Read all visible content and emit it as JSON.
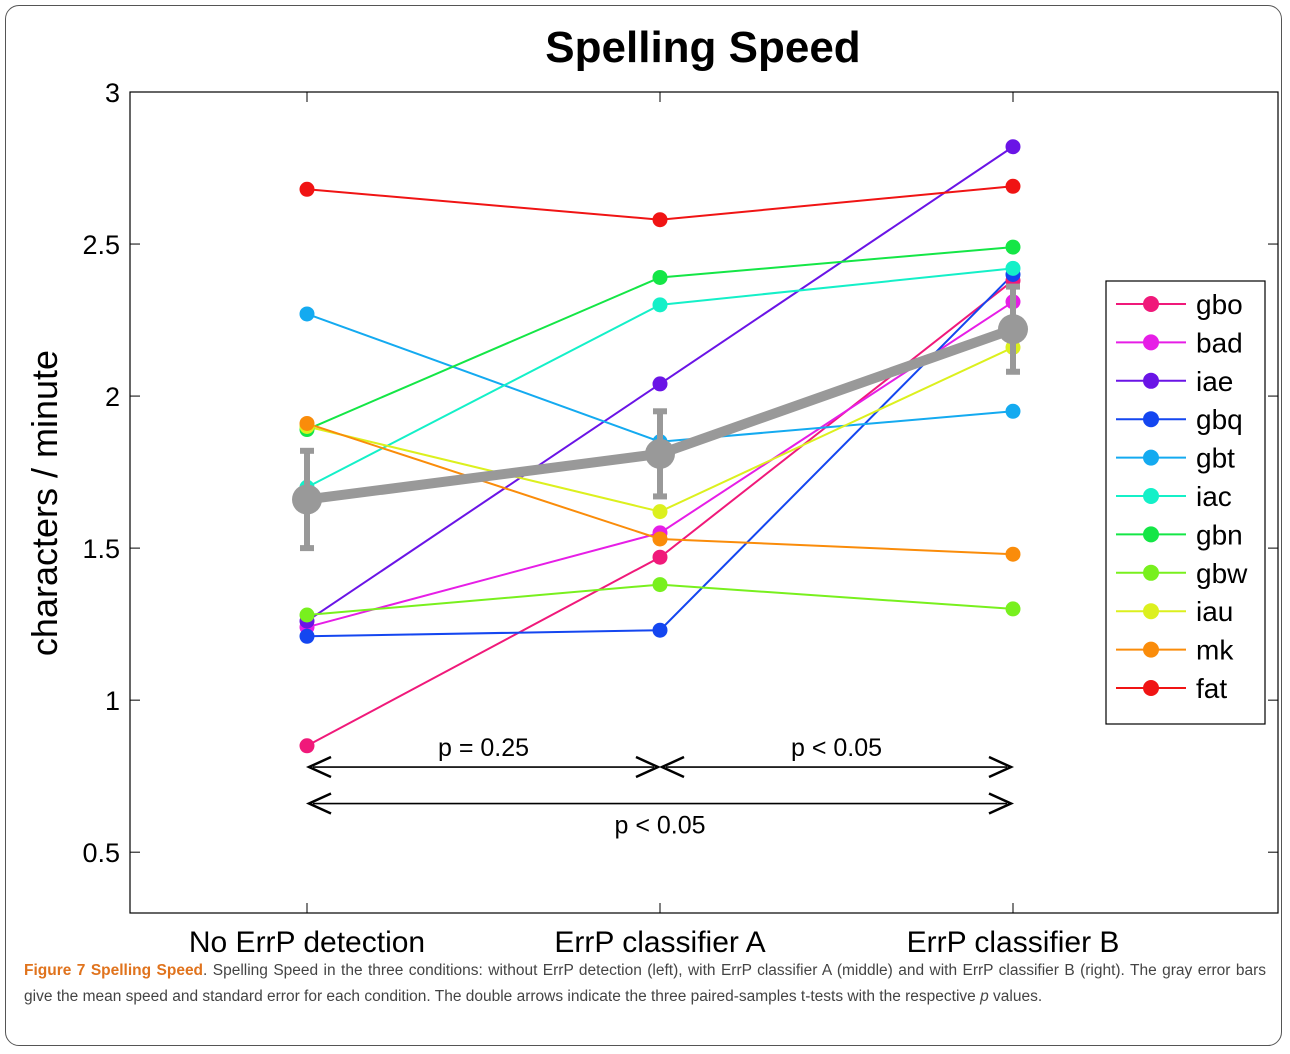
{
  "chart_data": {
    "type": "line",
    "title": "Spelling Speed",
    "ylabel": "characters / minute",
    "xlabel": "",
    "categories": [
      "No ErrP detection",
      "ErrP classifier A",
      "ErrP classifier B"
    ],
    "ylim": [
      0.3,
      3.0
    ],
    "yticks": [
      "0.5",
      "1",
      "1.5",
      "2",
      "2.5",
      "3"
    ],
    "legend_position": "right",
    "series": [
      {
        "name": "gbo",
        "color": "#f0197a",
        "values": [
          0.85,
          1.47,
          2.38
        ]
      },
      {
        "name": "bad",
        "color": "#e61ee6",
        "values": [
          1.24,
          1.55,
          2.31
        ]
      },
      {
        "name": "iae",
        "color": "#6a14e6",
        "values": [
          1.26,
          2.04,
          2.82
        ]
      },
      {
        "name": "gbq",
        "color": "#1446f0",
        "values": [
          1.21,
          1.23,
          2.4
        ]
      },
      {
        "name": "gbt",
        "color": "#14aaf0",
        "values": [
          2.27,
          1.85,
          1.95
        ]
      },
      {
        "name": "iac",
        "color": "#14f0c8",
        "values": [
          1.7,
          2.3,
          2.42
        ]
      },
      {
        "name": "gbn",
        "color": "#14e646",
        "values": [
          1.89,
          2.39,
          2.49
        ]
      },
      {
        "name": "gbw",
        "color": "#78f01e",
        "values": [
          1.28,
          1.38,
          1.3
        ]
      },
      {
        "name": "iau",
        "color": "#dcf01e",
        "values": [
          1.9,
          1.62,
          2.16
        ]
      },
      {
        "name": "mk",
        "color": "#fa8c0a",
        "values": [
          1.91,
          1.53,
          1.48
        ]
      },
      {
        "name": "fat",
        "color": "#f01414",
        "values": [
          2.68,
          2.58,
          2.69
        ]
      }
    ],
    "mean_series": {
      "color": "#999999",
      "values": [
        1.66,
        1.81,
        2.22
      ],
      "stderr": [
        0.16,
        0.14,
        0.14
      ]
    },
    "annotations": [
      {
        "text": "p = 0.25",
        "from": 0,
        "to": 1,
        "y": 0.78
      },
      {
        "text": "p < 0.05",
        "from": 1,
        "to": 2,
        "y": 0.78
      },
      {
        "text": "p < 0.05",
        "from": 0,
        "to": 2,
        "y": 0.66
      }
    ]
  },
  "caption": {
    "label": "Figure 7 Spelling Speed",
    "body": ". Spelling Speed in the three conditions: without ErrP detection (left), with ErrP classifier A (middle) and with ErrP classifier B (right). The gray error bars give the mean speed and standard error for each condition. The double arrows indicate the three paired-samples t-tests with the respective ",
    "italic": "p",
    "tail": " values."
  }
}
